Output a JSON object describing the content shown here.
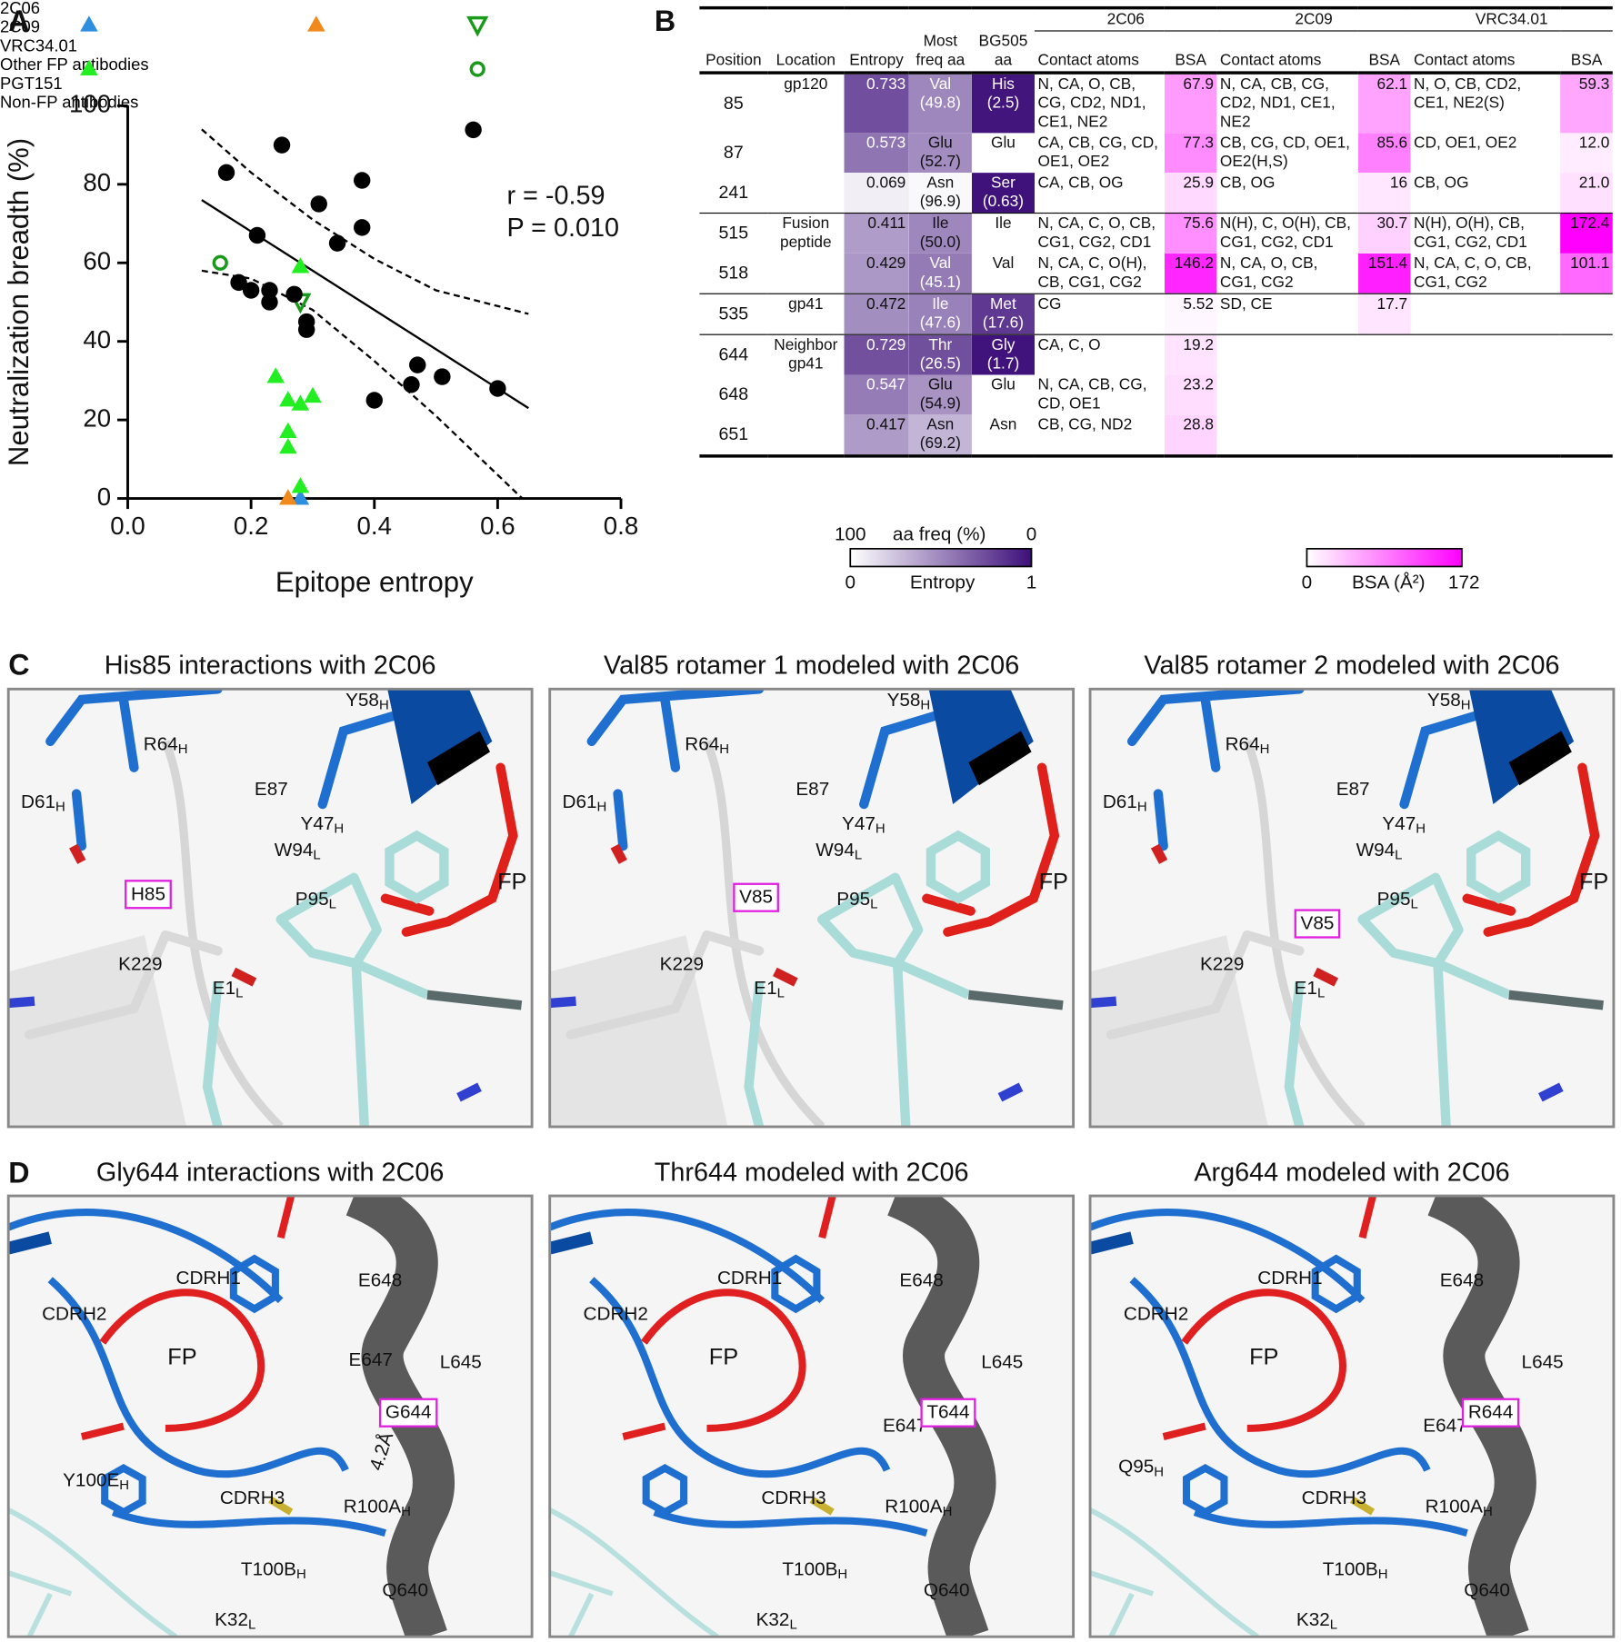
{
  "panel_letters": [
    "A",
    "B",
    "C",
    "D"
  ],
  "chart_data": {
    "type": "scatter",
    "xlabel": "Epitope entropy",
    "ylabel": "Neutralization breadth (%)",
    "xlim": [
      0,
      0.8
    ],
    "ylim": [
      0,
      100
    ],
    "xticks": [
      {
        "value": 0,
        "label": "0.0"
      },
      0.2,
      0.4,
      0.6,
      0.8
    ],
    "yticks": [
      0,
      20,
      40,
      60,
      80,
      100
    ],
    "series": [
      {
        "name": "2C06",
        "color": "#2e8fe0",
        "marker": "triangle",
        "x": [
          0.28
        ],
        "values": [
          0
        ]
      },
      {
        "name": "2C09",
        "color": "#f08a1c",
        "marker": "triangle",
        "x": [
          0.26
        ],
        "values": [
          0
        ]
      },
      {
        "name": "VRC34.01",
        "color": "#1a9a1a",
        "marker": "open-triangle-down",
        "x": [
          0.28
        ],
        "values": [
          50
        ]
      },
      {
        "name": "Other FP antibodies",
        "color": "#22ee22",
        "marker": "triangle",
        "x": [
          0.28,
          0.24,
          0.26,
          0.28,
          0.26,
          0.26,
          0.3,
          0.28
        ],
        "values": [
          59,
          31,
          25,
          24,
          17,
          13,
          26,
          3
        ]
      },
      {
        "name": "PGT151",
        "color": "#1a9a1a",
        "marker": "open-circle",
        "x": [
          0.15
        ],
        "values": [
          60
        ]
      },
      {
        "name": "Non-FP antibodies",
        "color": "#000000",
        "marker": "circle",
        "x": [
          0.16,
          0.25,
          0.21,
          0.31,
          0.38,
          0.38,
          0.34,
          0.18,
          0.2,
          0.23,
          0.23,
          0.27,
          0.29,
          0.29,
          0.4,
          0.46,
          0.47,
          0.51,
          0.6
        ],
        "values": [
          83,
          90,
          67,
          75,
          81,
          69,
          65,
          55,
          53,
          53,
          50,
          52,
          45,
          43,
          25,
          29,
          34,
          31,
          28
        ]
      }
    ],
    "fit": {
      "x": [
        0.12,
        0.65
      ],
      "values": [
        76,
        23
      ]
    },
    "ci_upper": {
      "x": [
        0.12,
        0.2,
        0.3,
        0.4,
        0.5,
        0.65
      ],
      "values": [
        94,
        83,
        71,
        61,
        53,
        47
      ]
    },
    "ci_lower": {
      "x": [
        0.12,
        0.2,
        0.3,
        0.4,
        0.5,
        0.6,
        0.64
      ],
      "values": [
        58,
        56,
        48,
        35,
        21,
        6,
        0
      ]
    },
    "annotations": [
      "r = -0.59",
      "P = 0.010"
    ]
  },
  "table": {
    "group_headers": [
      "2C06",
      "2C09",
      "VRC34.01"
    ],
    "headers": [
      "Position",
      "Location",
      "Entropy",
      "Most freq aa",
      "BG505 aa",
      "Contact atoms",
      "BSA",
      "Contact atoms",
      "BSA",
      "Contact atoms",
      "BSA"
    ],
    "rows": [
      {
        "position": 85,
        "location": "gp120",
        "entropy": 0.733,
        "most_freq": {
          "aa": "Val",
          "freq": 49.8,
          "label": "(49.8)"
        },
        "bg505": {
          "aa": "His",
          "freq": 2.5,
          "label": "(2.5)"
        },
        "contacts": [
          {
            "atoms": "N, CA, O, CB, CG, CD2, ND1, CE1, NE2",
            "bsa": 67.9
          },
          {
            "atoms": "N, CA, CB, CG, CD2, ND1, CE1, NE2",
            "bsa": 62.1
          },
          {
            "atoms": "N, O, CB, CD2, CE1, NE2(S)",
            "bsa": 59.3
          }
        ]
      },
      {
        "position": 87,
        "entropy": 0.573,
        "most_freq": {
          "aa": "Glu",
          "freq": 52.7,
          "label": "(52.7)"
        },
        "bg505": {
          "aa": "Glu"
        },
        "contacts": [
          {
            "atoms": "CA, CB, CG, CD, OE1, OE2",
            "bsa": 77.3
          },
          {
            "atoms": "CB, CG, CD, OE1, OE2(H,S)",
            "bsa": 85.6
          },
          {
            "atoms": "CD, OE1, OE2",
            "bsa": 12,
            "bsa_label": "12.0"
          }
        ]
      },
      {
        "position": 241,
        "entropy": 0.069,
        "most_freq": {
          "aa": "Asn",
          "freq": 96.9,
          "label": "(96.9)"
        },
        "bg505": {
          "aa": "Ser",
          "freq": 0.63,
          "label": "(0.63)"
        },
        "contacts": [
          {
            "atoms": "CA, CB, OG",
            "bsa": 25.9
          },
          {
            "atoms": "CB, OG",
            "bsa": 16
          },
          {
            "atoms": "CB, OG",
            "bsa": 21,
            "bsa_label": "21.0"
          }
        ]
      },
      {
        "position": 515,
        "location": "Fusion peptide",
        "entropy": 0.411,
        "most_freq": {
          "aa": "Ile",
          "freq": 50,
          "label": "(50.0)"
        },
        "bg505": {
          "aa": "Ile"
        },
        "contacts": [
          {
            "atoms": "N, CA, C, O, CB, CG1, CG2, CD1",
            "bsa": 75.6
          },
          {
            "atoms": "N(H), C, O(H), CB, CG1, CG2, CD1",
            "bsa": 30.7
          },
          {
            "atoms": "N(H), O(H), CB, CG1, CG2, CD1",
            "bsa": 172.4
          }
        ]
      },
      {
        "position": 518,
        "entropy": 0.429,
        "most_freq": {
          "aa": "Val",
          "freq": 45.1,
          "label": "(45.1)"
        },
        "bg505": {
          "aa": "Val"
        },
        "contacts": [
          {
            "atoms": "N, CA, C, O(H), CB, CG1, CG2",
            "bsa": 146.2
          },
          {
            "atoms": "N, CA, O, CB, CG1, CG2",
            "bsa": 151.4
          },
          {
            "atoms": "N, CA, C, O, CB, CG1, CG2",
            "bsa": 101.1
          }
        ]
      },
      {
        "position": 535,
        "location": "gp41",
        "entropy": 0.472,
        "most_freq": {
          "aa": "Ile",
          "freq": 47.6,
          "label": "(47.6)"
        },
        "bg505": {
          "aa": "Met",
          "freq": 17.6,
          "label": "(17.6)"
        },
        "contacts": [
          {
            "atoms": "CG",
            "bsa": 5.52
          },
          {
            "atoms": "SD, CE",
            "bsa": 17.7
          }
        ]
      },
      {
        "position": 644,
        "location": "Neighbor gp41",
        "entropy": 0.729,
        "most_freq": {
          "aa": "Thr",
          "freq": 26.5,
          "label": "(26.5)"
        },
        "bg505": {
          "aa": "Gly",
          "freq": 1.7,
          "label": "(1.7)"
        },
        "contacts": [
          {
            "atoms": "CA, C, O",
            "bsa": 19.2
          }
        ]
      },
      {
        "position": 648,
        "entropy": 0.547,
        "most_freq": {
          "aa": "Glu",
          "freq": 54.9,
          "label": "(54.9)"
        },
        "bg505": {
          "aa": "Glu"
        },
        "contacts": [
          {
            "atoms": "N, CA, CB, CG, CD, OE1",
            "bsa": 23.2
          }
        ]
      },
      {
        "position": 651,
        "entropy": 0.417,
        "most_freq": {
          "aa": "Asn",
          "freq": 69.2,
          "label": "(69.2)"
        },
        "bg505": {
          "aa": "Asn"
        },
        "contacts": [
          {
            "atoms": "CB, CG, ND2",
            "bsa": 28.8
          }
        ]
      }
    ]
  },
  "scales": {
    "freq": {
      "label": "aa freq (%)",
      "lim": [
        100,
        0
      ],
      "colors": [
        "#ffffff",
        "#3d0f7a"
      ]
    },
    "entropy": {
      "label": "Entropy",
      "lim": [
        0,
        1
      ],
      "colors": [
        "#ffffff",
        "#3d0f7a"
      ]
    },
    "bsa": {
      "label": "BSA (Å²)",
      "lim": [
        0,
        172
      ],
      "colors": [
        "#ffffff",
        "#ff00ff"
      ]
    }
  },
  "panel_c": [
    {
      "title": "His85 interactions with 2C06",
      "labels": [
        {
          "text": "Y58",
          "sub": "H"
        },
        {
          "text": "R64",
          "sub": "H"
        },
        {
          "text": "E87"
        },
        {
          "text": "D61",
          "sub": "H"
        },
        {
          "text": "Y47",
          "sub": "H"
        },
        {
          "text": "W94",
          "sub": "L"
        },
        {
          "text": "H85",
          "boxed": true
        },
        {
          "text": "P95",
          "sub": "L"
        },
        {
          "text": "FP",
          "color": "#e0201a"
        },
        {
          "text": "K229"
        },
        {
          "text": "E1",
          "sub": "L"
        }
      ]
    },
    {
      "title": "Val85 rotamer 1 modeled with 2C06",
      "labels": [
        {
          "text": "Y58",
          "sub": "H"
        },
        {
          "text": "R64",
          "sub": "H"
        },
        {
          "text": "E87"
        },
        {
          "text": "D61",
          "sub": "H"
        },
        {
          "text": "Y47",
          "sub": "H"
        },
        {
          "text": "W94",
          "sub": "L"
        },
        {
          "text": "V85",
          "boxed": true
        },
        {
          "text": "P95",
          "sub": "L"
        },
        {
          "text": "FP",
          "color": "#e0201a"
        },
        {
          "text": "K229"
        },
        {
          "text": "E1",
          "sub": "L"
        }
      ]
    },
    {
      "title": "Val85 rotamer 2 modeled with 2C06",
      "labels": [
        {
          "text": "Y58",
          "sub": "H"
        },
        {
          "text": "R64",
          "sub": "H"
        },
        {
          "text": "E87"
        },
        {
          "text": "D61",
          "sub": "H"
        },
        {
          "text": "Y47",
          "sub": "H"
        },
        {
          "text": "W94",
          "sub": "L"
        },
        {
          "text": "V85",
          "boxed": true
        },
        {
          "text": "P95",
          "sub": "L"
        },
        {
          "text": "FP",
          "color": "#e0201a"
        },
        {
          "text": "K229"
        },
        {
          "text": "E1",
          "sub": "L"
        }
      ]
    }
  ],
  "panel_d": [
    {
      "title": "Gly644 interactions with 2C06",
      "labels": [
        {
          "text": "CDRH1",
          "color": "#2a86e0"
        },
        {
          "text": "CDRH2",
          "color": "#2a86e0"
        },
        {
          "text": "E648"
        },
        {
          "text": "FP",
          "color": "#e0201a"
        },
        {
          "text": "E647"
        },
        {
          "text": "L645"
        },
        {
          "text": "G644",
          "boxed": true
        },
        {
          "text": "4.2Å"
        },
        {
          "text": "Y100E",
          "sub": "H"
        },
        {
          "text": "CDRH3",
          "color": "#2a86e0"
        },
        {
          "text": "R100A",
          "sub": "H"
        },
        {
          "text": "T100B",
          "sub": "H"
        },
        {
          "text": "Q640"
        },
        {
          "text": "K32",
          "sub": "L"
        }
      ]
    },
    {
      "title": "Thr644 modeled with 2C06",
      "labels": [
        {
          "text": "CDRH1",
          "color": "#2a86e0"
        },
        {
          "text": "CDRH2",
          "color": "#2a86e0"
        },
        {
          "text": "E648"
        },
        {
          "text": "FP",
          "color": "#e0201a"
        },
        {
          "text": "E647"
        },
        {
          "text": "L645"
        },
        {
          "text": "T644",
          "boxed": true
        },
        {
          "text": "CDRH3",
          "color": "#2a86e0"
        },
        {
          "text": "R100A",
          "sub": "H"
        },
        {
          "text": "T100B",
          "sub": "H"
        },
        {
          "text": "Q640"
        },
        {
          "text": "K32",
          "sub": "L"
        }
      ]
    },
    {
      "title": "Arg644 modeled with 2C06",
      "labels": [
        {
          "text": "CDRH1",
          "color": "#2a86e0"
        },
        {
          "text": "CDRH2",
          "color": "#2a86e0"
        },
        {
          "text": "E648"
        },
        {
          "text": "FP",
          "color": "#e0201a"
        },
        {
          "text": "E647"
        },
        {
          "text": "L645"
        },
        {
          "text": "R644",
          "boxed": true
        },
        {
          "text": "Q95",
          "sub": "H"
        },
        {
          "text": "CDRH3",
          "color": "#2a86e0"
        },
        {
          "text": "R100A",
          "sub": "H"
        },
        {
          "text": "T100B",
          "sub": "H"
        },
        {
          "text": "Q640"
        },
        {
          "text": "K32",
          "sub": "L"
        }
      ]
    }
  ]
}
